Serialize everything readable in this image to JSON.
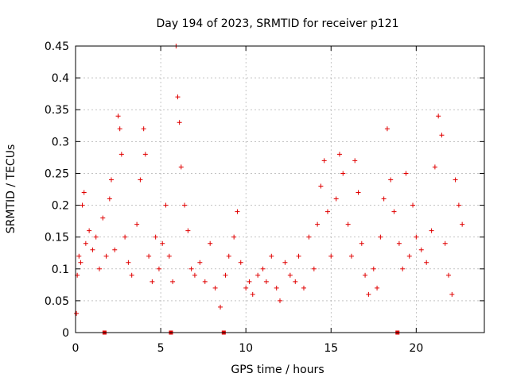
{
  "chart_data": {
    "type": "scatter",
    "title": "Day 194 of 2023, SRMTID for receiver p121",
    "xlabel": "GPS time / hours",
    "ylabel": "SRMTID / TECUs",
    "xlim": [
      0,
      24
    ],
    "ylim": [
      0,
      0.45
    ],
    "xticks": [
      0,
      5,
      10,
      15,
      20
    ],
    "xtick_labels": [
      "0",
      "5",
      "10",
      "15",
      "20"
    ],
    "yticks": [
      0,
      0.05,
      0.1,
      0.15,
      0.2,
      0.25,
      0.3,
      0.35,
      0.4,
      0.45
    ],
    "ytick_labels": [
      "0",
      "0.05",
      "0.1",
      "0.15",
      "0.2",
      "0.25",
      "0.3",
      "0.35",
      "0.4",
      "0.45"
    ],
    "grid": true,
    "marker": "+",
    "color": "#e00000",
    "series": [
      {
        "name": "SRMTID",
        "points": [
          [
            0.05,
            0.03
          ],
          [
            0.1,
            0.09
          ],
          [
            0.2,
            0.12
          ],
          [
            0.3,
            0.11
          ],
          [
            0.4,
            0.2
          ],
          [
            0.5,
            0.22
          ],
          [
            0.6,
            0.14
          ],
          [
            0.8,
            0.16
          ],
          [
            1.0,
            0.13
          ],
          [
            1.2,
            0.15
          ],
          [
            1.4,
            0.1
          ],
          [
            1.6,
            0.18
          ],
          [
            1.8,
            0.12
          ],
          [
            2.0,
            0.21
          ],
          [
            2.1,
            0.24
          ],
          [
            2.3,
            0.13
          ],
          [
            2.5,
            0.34
          ],
          [
            2.6,
            0.32
          ],
          [
            2.7,
            0.28
          ],
          [
            2.9,
            0.15
          ],
          [
            3.1,
            0.11
          ],
          [
            3.3,
            0.09
          ],
          [
            3.6,
            0.17
          ],
          [
            3.8,
            0.24
          ],
          [
            4.0,
            0.32
          ],
          [
            4.1,
            0.28
          ],
          [
            4.3,
            0.12
          ],
          [
            4.5,
            0.08
          ],
          [
            4.7,
            0.15
          ],
          [
            4.9,
            0.1
          ],
          [
            5.1,
            0.14
          ],
          [
            5.3,
            0.2
          ],
          [
            5.5,
            0.12
          ],
          [
            5.7,
            0.08
          ],
          [
            5.9,
            0.45
          ],
          [
            6.0,
            0.37
          ],
          [
            6.1,
            0.33
          ],
          [
            6.2,
            0.26
          ],
          [
            6.4,
            0.2
          ],
          [
            6.6,
            0.16
          ],
          [
            6.8,
            0.1
          ],
          [
            7.0,
            0.09
          ],
          [
            7.3,
            0.11
          ],
          [
            7.6,
            0.08
          ],
          [
            7.9,
            0.14
          ],
          [
            8.2,
            0.07
          ],
          [
            8.5,
            0.04
          ],
          [
            8.8,
            0.09
          ],
          [
            9.0,
            0.12
          ],
          [
            9.3,
            0.15
          ],
          [
            9.5,
            0.19
          ],
          [
            9.7,
            0.11
          ],
          [
            10.0,
            0.07
          ],
          [
            10.2,
            0.08
          ],
          [
            10.4,
            0.06
          ],
          [
            10.7,
            0.09
          ],
          [
            11.0,
            0.1
          ],
          [
            11.2,
            0.08
          ],
          [
            11.5,
            0.12
          ],
          [
            11.8,
            0.07
          ],
          [
            12.0,
            0.05
          ],
          [
            12.3,
            0.11
          ],
          [
            12.6,
            0.09
          ],
          [
            12.9,
            0.08
          ],
          [
            13.1,
            0.12
          ],
          [
            13.4,
            0.07
          ],
          [
            13.7,
            0.15
          ],
          [
            14.0,
            0.1
          ],
          [
            14.2,
            0.17
          ],
          [
            14.4,
            0.23
          ],
          [
            14.6,
            0.27
          ],
          [
            14.8,
            0.19
          ],
          [
            15.0,
            0.12
          ],
          [
            15.3,
            0.21
          ],
          [
            15.5,
            0.28
          ],
          [
            15.7,
            0.25
          ],
          [
            16.0,
            0.17
          ],
          [
            16.2,
            0.12
          ],
          [
            16.4,
            0.27
          ],
          [
            16.6,
            0.22
          ],
          [
            16.8,
            0.14
          ],
          [
            17.0,
            0.09
          ],
          [
            17.2,
            0.06
          ],
          [
            17.5,
            0.1
          ],
          [
            17.7,
            0.07
          ],
          [
            17.9,
            0.15
          ],
          [
            18.1,
            0.21
          ],
          [
            18.3,
            0.32
          ],
          [
            18.5,
            0.24
          ],
          [
            18.7,
            0.19
          ],
          [
            19.0,
            0.14
          ],
          [
            19.2,
            0.1
          ],
          [
            19.4,
            0.25
          ],
          [
            19.6,
            0.12
          ],
          [
            19.8,
            0.2
          ],
          [
            20.0,
            0.15
          ],
          [
            20.3,
            0.13
          ],
          [
            20.6,
            0.11
          ],
          [
            20.9,
            0.16
          ],
          [
            21.1,
            0.26
          ],
          [
            21.3,
            0.34
          ],
          [
            21.5,
            0.31
          ],
          [
            21.7,
            0.14
          ],
          [
            21.9,
            0.09
          ],
          [
            22.1,
            0.06
          ],
          [
            22.3,
            0.24
          ],
          [
            22.5,
            0.2
          ],
          [
            22.7,
            0.17
          ]
        ]
      }
    ],
    "axis_markers_at_zero": [
      1.7,
      5.6,
      8.7,
      18.9
    ]
  }
}
